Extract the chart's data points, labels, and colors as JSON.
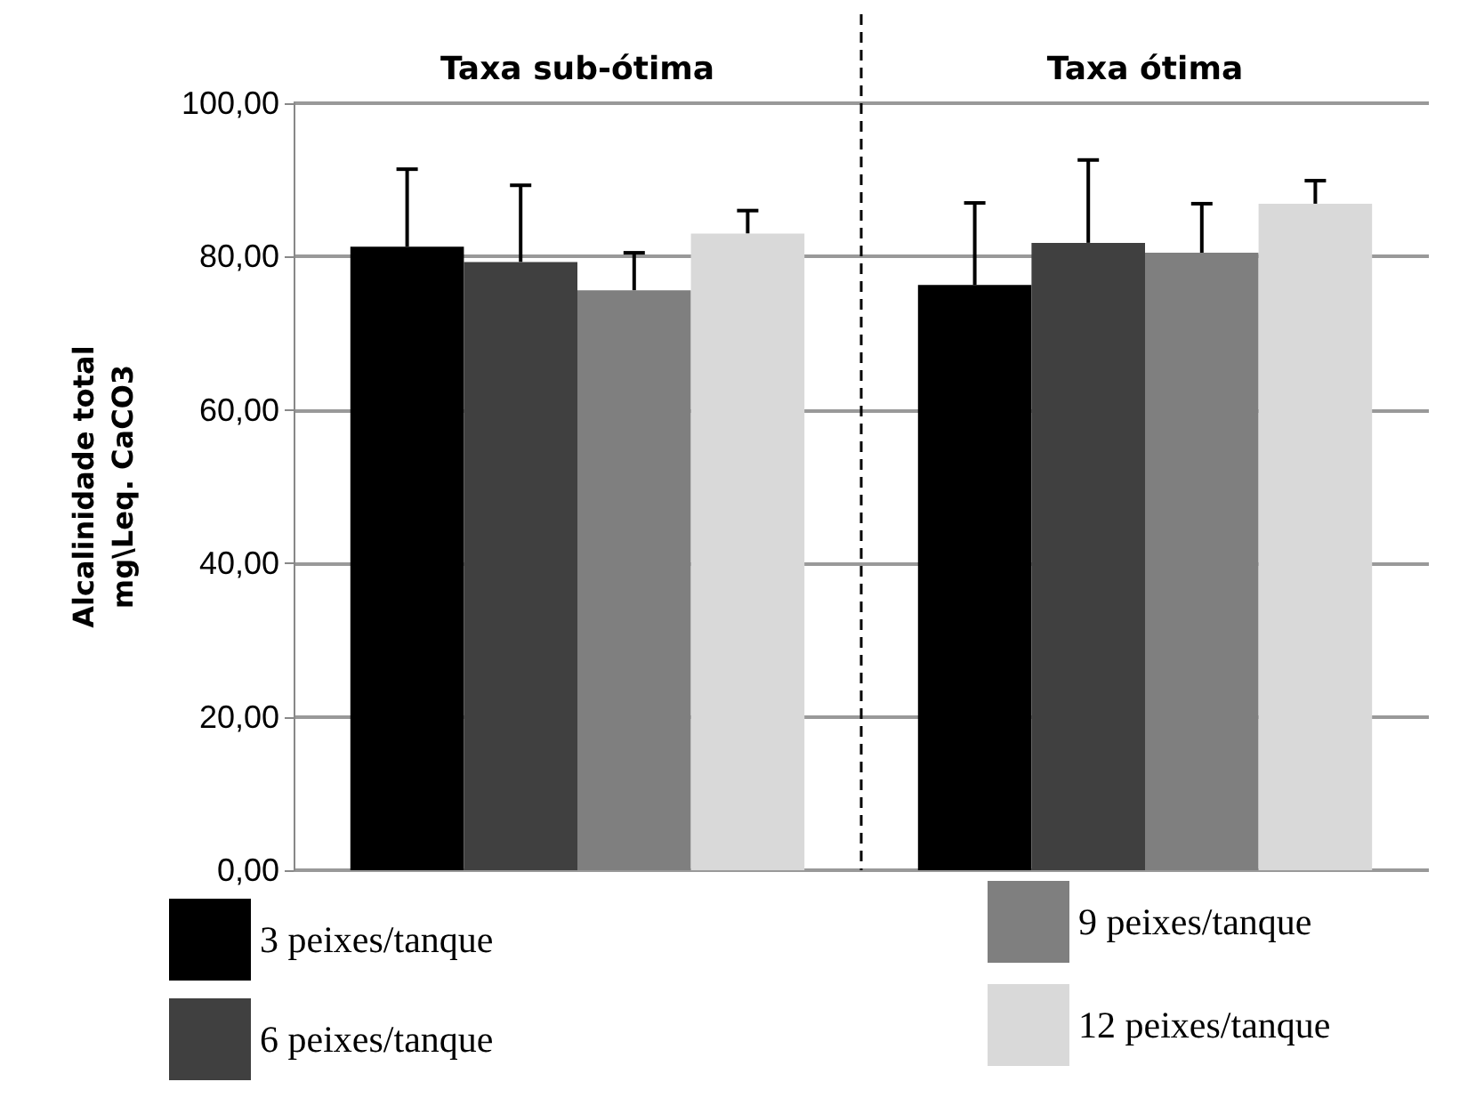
{
  "chart_data": {
    "type": "bar",
    "categories": [
      "Taxa sub-ótima",
      "Taxa ótima"
    ],
    "ylabel": "Alcalinidade total\nmg\\Leq. CaCO3",
    "series": [
      {
        "name": "3 peixes/tanque",
        "color": "#000000",
        "values": [
          81.3,
          76.3
        ],
        "errors": [
          [
            81.3,
            91.4
          ],
          [
            76.3,
            87.0
          ]
        ]
      },
      {
        "name": "6 peixes/tanque",
        "color": "#404040",
        "values": [
          79.3,
          81.8
        ],
        "errors": [
          [
            79.3,
            89.3
          ],
          [
            81.8,
            92.6
          ]
        ]
      },
      {
        "name": "9 peixes/tanque",
        "color": "#7f7f7f",
        "values": [
          75.6,
          80.5
        ],
        "errors": [
          [
            75.6,
            80.5
          ],
          [
            80.5,
            86.9
          ]
        ]
      },
      {
        "name": "12 peixes/tanque",
        "color": "#d9d9d9",
        "values": [
          83.0,
          86.9
        ],
        "errors": [
          [
            83.0,
            86.0
          ],
          [
            86.9,
            89.9
          ]
        ]
      }
    ],
    "ylim": [
      0,
      100
    ],
    "yticks": [
      {
        "value": 0,
        "label": "0,00"
      },
      {
        "value": 20,
        "label": "20,00"
      },
      {
        "value": 40,
        "label": "40,00"
      },
      {
        "value": 60,
        "label": "60,00"
      },
      {
        "value": 80,
        "label": "80,00"
      },
      {
        "value": 100,
        "label": "100,00"
      }
    ],
    "grid": "y",
    "legend": "bottom"
  }
}
